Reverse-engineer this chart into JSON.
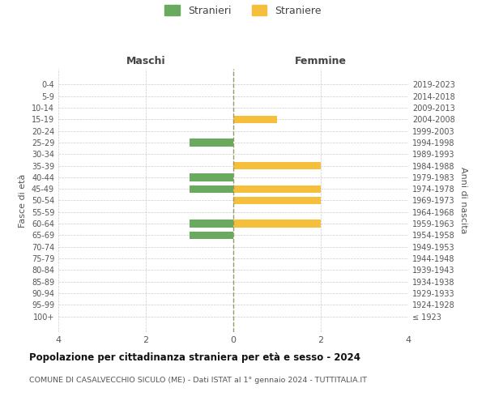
{
  "age_groups": [
    "100+",
    "95-99",
    "90-94",
    "85-89",
    "80-84",
    "75-79",
    "70-74",
    "65-69",
    "60-64",
    "55-59",
    "50-54",
    "45-49",
    "40-44",
    "35-39",
    "30-34",
    "25-29",
    "20-24",
    "15-19",
    "10-14",
    "5-9",
    "0-4"
  ],
  "birth_years": [
    "≤ 1923",
    "1924-1928",
    "1929-1933",
    "1934-1938",
    "1939-1943",
    "1944-1948",
    "1949-1953",
    "1954-1958",
    "1959-1963",
    "1964-1968",
    "1969-1973",
    "1974-1978",
    "1979-1983",
    "1984-1988",
    "1989-1993",
    "1994-1998",
    "1999-2003",
    "2004-2008",
    "2009-2013",
    "2014-2018",
    "2019-2023"
  ],
  "males": [
    0,
    0,
    0,
    0,
    0,
    0,
    0,
    -1,
    -1,
    0,
    0,
    -1,
    -1,
    0,
    0,
    -1,
    0,
    0,
    0,
    0,
    0
  ],
  "females": [
    0,
    0,
    0,
    0,
    0,
    0,
    0,
    0,
    2,
    0,
    2,
    2,
    0,
    2,
    0,
    0,
    0,
    1,
    0,
    0,
    0
  ],
  "male_color": "#6aaa5e",
  "female_color": "#f5be3b",
  "male_label": "Stranieri",
  "female_label": "Straniere",
  "title": "Popolazione per cittadinanza straniera per età e sesso - 2024",
  "subtitle": "COMUNE DI CASALVECCHIO SICULO (ME) - Dati ISTAT al 1° gennaio 2024 - TUTTITALIA.IT",
  "ylabel_left": "Fasce di età",
  "ylabel_right": "Anni di nascita",
  "xlabel_left": "Maschi",
  "xlabel_right": "Femmine",
  "xlim": [
    -4,
    4
  ],
  "xticks": [
    -4,
    -2,
    0,
    2,
    4
  ],
  "xticklabels": [
    "4",
    "2",
    "0",
    "2",
    "4"
  ],
  "background_color": "#ffffff",
  "grid_color": "#cccccc",
  "bar_height": 0.65,
  "center_line_color": "#999966",
  "center_line_style": "--"
}
